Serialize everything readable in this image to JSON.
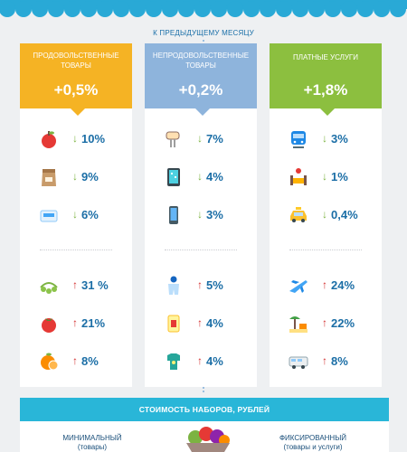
{
  "subtitle": "К ПРЕДЫДУЩЕМУ МЕСЯЦУ",
  "colors": {
    "food": "#f5b324",
    "nonfood": "#8eb4dc",
    "services": "#8cbf3f",
    "text_blue": "#1b6ea6",
    "arrow_down": "#7cb342",
    "arrow_up": "#d32f2f",
    "bar": "#29b6d8"
  },
  "columns": [
    {
      "category": "ПРОДОВОЛЬСТВЕННЫЕ ТОВАРЫ",
      "change": "+0,5%",
      "decreases": [
        {
          "icon": "apple-icon",
          "value": "10%"
        },
        {
          "icon": "flour-bag-icon",
          "value": "9%"
        },
        {
          "icon": "sugar-bag-icon",
          "value": "6%"
        }
      ],
      "increases": [
        {
          "icon": "peas-icon",
          "value": "31 %"
        },
        {
          "icon": "tomato-icon",
          "value": "21%"
        },
        {
          "icon": "orange-icon",
          "value": "8%"
        }
      ]
    },
    {
      "category": "НЕПРОДОВОЛЬСТВЕННЫЕ ТОВАРЫ",
      "change": "+0,2%",
      "decreases": [
        {
          "icon": "mixer-icon",
          "value": "7%"
        },
        {
          "icon": "tablet-icon",
          "value": "4%"
        },
        {
          "icon": "smartphone-icon",
          "value": "3%"
        }
      ],
      "increases": [
        {
          "icon": "baby-suit-icon",
          "value": "5%"
        },
        {
          "icon": "medicine-icon",
          "value": "4%"
        },
        {
          "icon": "baby-bodysuit-icon",
          "value": "4%"
        }
      ]
    },
    {
      "category": "ПЛАТНЫЕ УСЛУГИ",
      "change": "+1,8%",
      "decreases": [
        {
          "icon": "train-icon",
          "value": "3%"
        },
        {
          "icon": "hotel-bed-icon",
          "value": "1%"
        },
        {
          "icon": "taxi-icon",
          "value": "0,4%"
        }
      ],
      "increases": [
        {
          "icon": "airplane-icon",
          "value": "24%"
        },
        {
          "icon": "beach-icon",
          "value": "22%"
        },
        {
          "icon": "bus-icon",
          "value": "8%"
        }
      ]
    }
  ],
  "bottom": {
    "title": "СТОИМОСТЬ  НАБОРОВ, РУБЛЕЙ",
    "left_label": "МИНИМАЛЬНЫЙ",
    "left_sub": "(товары)",
    "right_label": "ФИКСИРОВАННЫЙ",
    "right_sub": "(товары и услуги)"
  }
}
